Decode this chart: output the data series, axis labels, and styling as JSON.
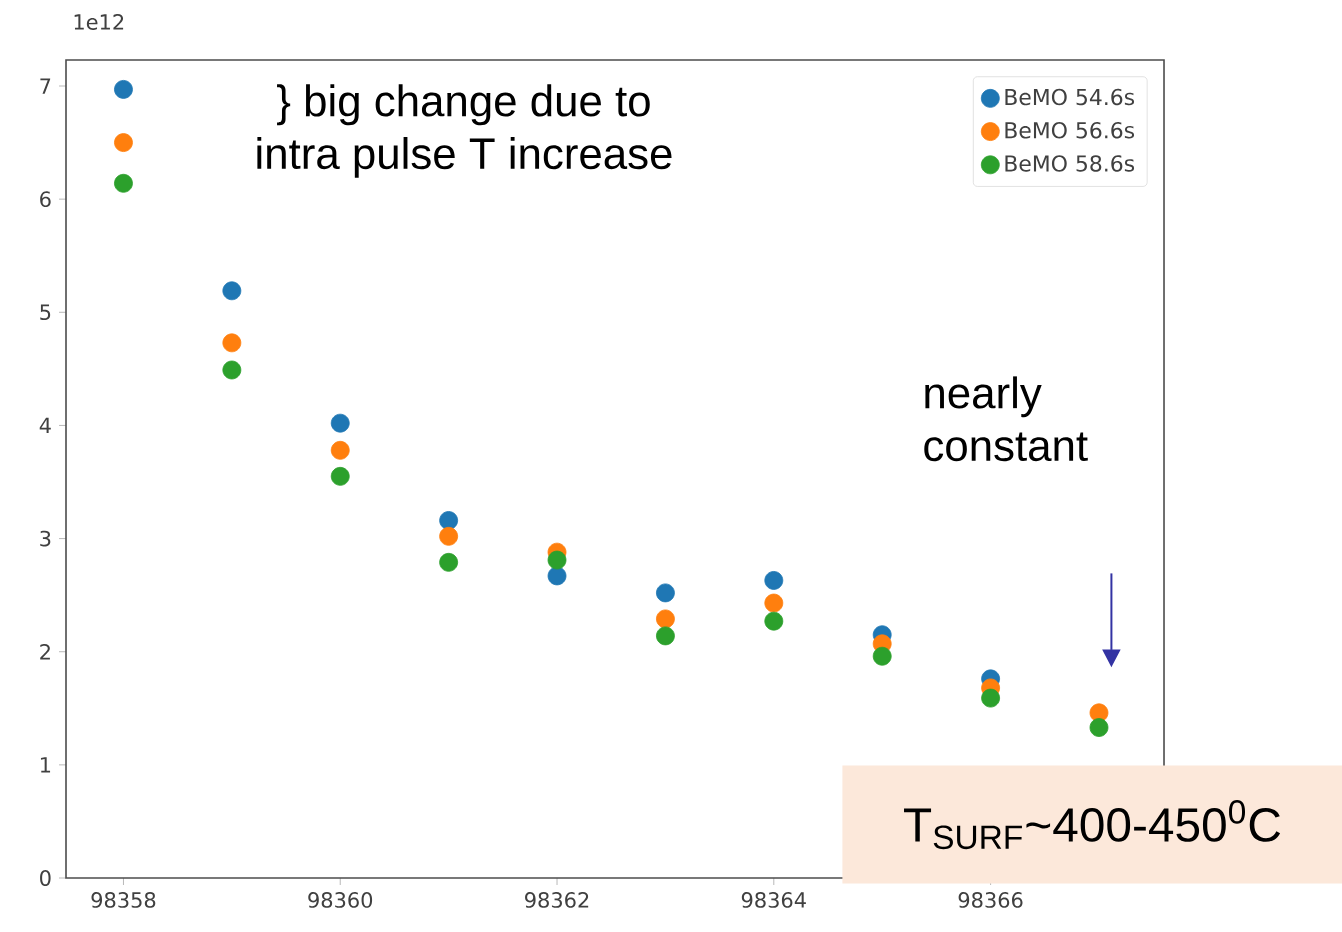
{
  "chart_data": {
    "type": "scatter",
    "x": [
      98358,
      98359,
      98360,
      98361,
      98362,
      98363,
      98364,
      98365,
      98366,
      98367
    ],
    "series": [
      {
        "name": "BeMO 54.6s",
        "color": "#1f77b4",
        "values": [
          6.97,
          5.19,
          4.02,
          3.16,
          2.67,
          2.52,
          2.63,
          2.15,
          1.76,
          null
        ]
      },
      {
        "name": "BeMO 56.6s",
        "color": "#ff7f0e",
        "values": [
          6.5,
          4.73,
          3.78,
          3.02,
          2.88,
          2.29,
          2.43,
          2.07,
          1.68,
          1.46
        ]
      },
      {
        "name": "BeMO 58.6s",
        "color": "#2ca02c",
        "values": [
          6.14,
          4.49,
          3.55,
          2.79,
          2.81,
          2.14,
          2.27,
          1.96,
          1.59,
          1.33
        ]
      }
    ],
    "xlim": [
      98357.47,
      98367.6
    ],
    "ylim": [
      0,
      7.23
    ],
    "xticks": [
      98358,
      98360,
      98362,
      98364,
      98366
    ],
    "yticks": [
      0,
      1,
      2,
      3,
      4,
      5,
      6,
      7
    ],
    "legend": "top right",
    "marker": "circle",
    "annotations": [
      "1e12",
      "} big change due to intra pulse T increase",
      "nearly constant",
      "T$_{SURF}$~400-450$^{0}$C"
    ]
  }
}
